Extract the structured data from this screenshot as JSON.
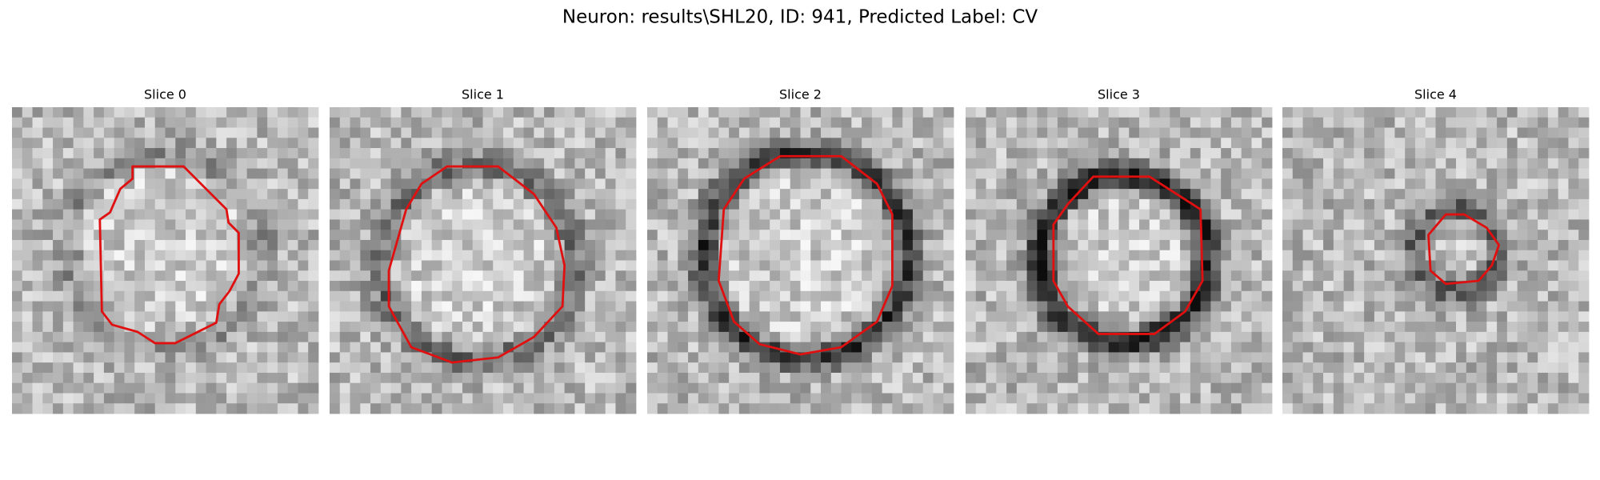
{
  "title": "Neuron: results\\SHL20, ID: 941, Predicted Label: CV",
  "panels": [
    {
      "title": "Slice 0"
    },
    {
      "title": "Slice 1"
    },
    {
      "title": "Slice 2"
    },
    {
      "title": "Slice 3"
    },
    {
      "title": "Slice 4"
    }
  ]
}
